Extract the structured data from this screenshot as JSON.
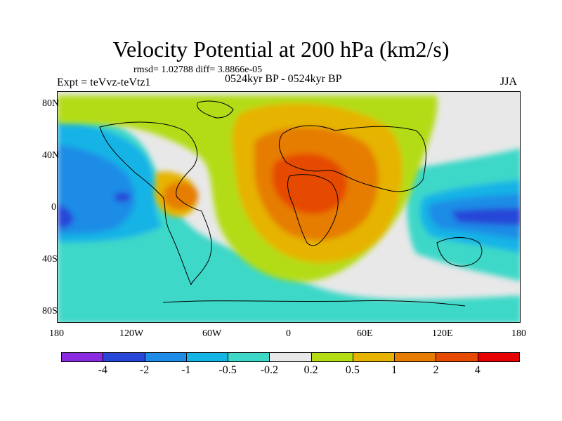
{
  "header": {
    "title": "Velocity Potential at 200 hPa (km2/s)",
    "stats": "rmsd= 1.02788 diff= 3.8866e-05",
    "experiment": "Expt = teVvz-teVtz1",
    "period": "0524kyr BP - 0524kyr BP",
    "season": "JJA"
  },
  "map": {
    "lat_labels": [
      "80N",
      "40N",
      "0",
      "40S",
      "80S"
    ],
    "lon_labels": [
      "180",
      "120W",
      "60W",
      "0",
      "60E",
      "120E",
      "180"
    ]
  },
  "colorbar": {
    "colors": [
      "#8a2be2",
      "#2846d8",
      "#1e8ce6",
      "#14b4e6",
      "#3ed8c8",
      "#e8e8e8",
      "#b4dc14",
      "#e6b400",
      "#e67d00",
      "#e64a00",
      "#e60000"
    ],
    "labels": [
      "-4",
      "-2",
      "-1",
      "-0.5",
      "-0.2",
      "0.2",
      "0.5",
      "1",
      "2",
      "4"
    ]
  }
}
